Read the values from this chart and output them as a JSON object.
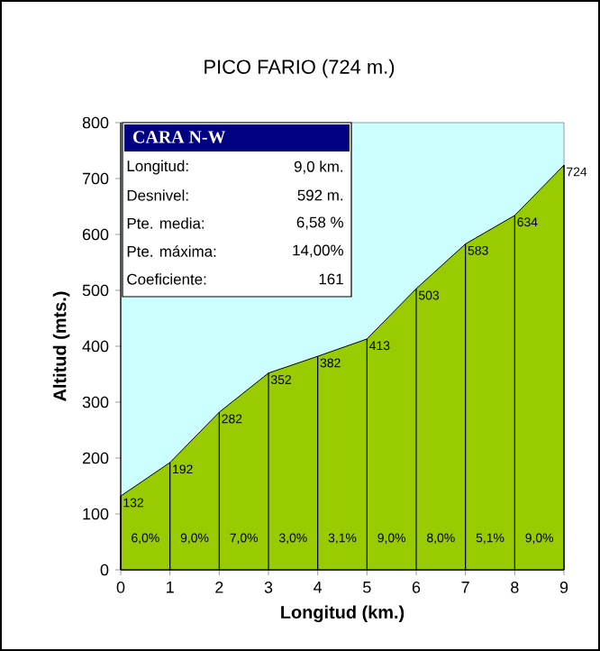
{
  "chart_data": {
    "type": "area",
    "title": "PICO FARIO (724 m.)",
    "xlabel": "Longitud (km.)",
    "ylabel": "Altitud (mts.)",
    "x": [
      0,
      1,
      2,
      3,
      4,
      5,
      6,
      7,
      8,
      9
    ],
    "values": [
      132,
      192,
      282,
      352,
      382,
      413,
      503,
      583,
      634,
      724
    ],
    "color": "#99cc00",
    "xlim": [
      0,
      9
    ],
    "xticks": [
      0,
      1,
      2,
      3,
      4,
      5,
      6,
      7,
      8,
      9
    ],
    "ylim": [
      0,
      800
    ],
    "yticks": [
      0,
      100,
      200,
      300,
      400,
      500,
      600,
      700,
      800
    ],
    "data_labels": true,
    "grid": "x",
    "annotations": [
      "CARA N-W",
      "Longitud:",
      "9,0 km.",
      "Desnivel:",
      "592 m.",
      "Pte. media:",
      "6,58 %",
      "Pte. máxima:",
      "14,00%",
      "Coeficiente:",
      "161",
      "6,0%",
      "9,0%",
      "7,0%",
      "3,0%",
      "3,1%",
      "9,0%",
      "8,0%",
      "5,1%",
      "9,0%"
    ]
  }
}
